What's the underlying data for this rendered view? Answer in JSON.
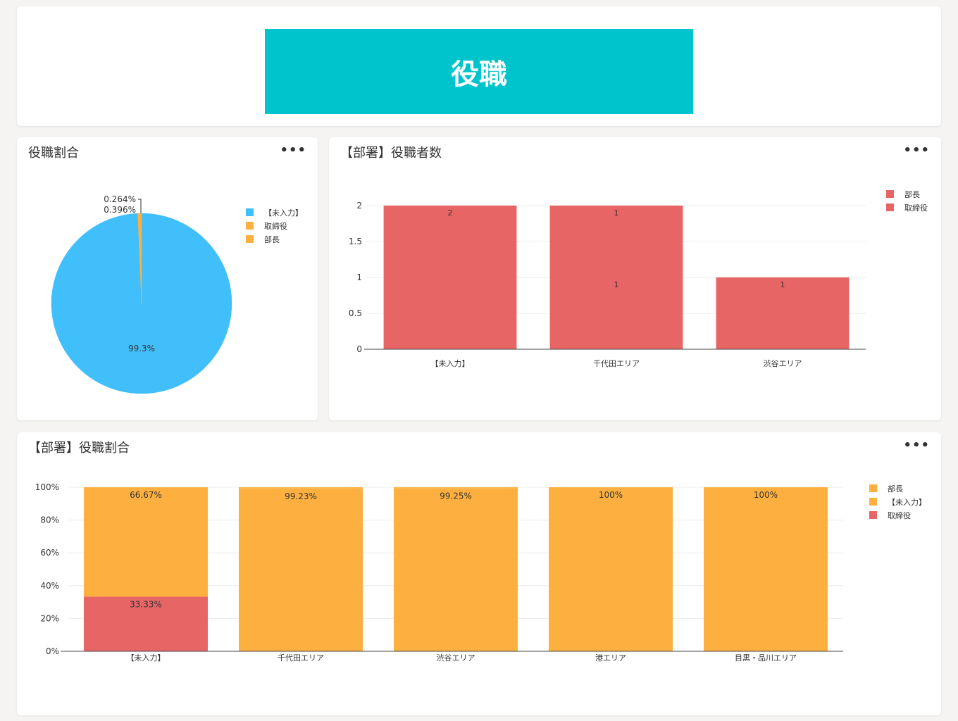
{
  "header": {
    "title": "役職",
    "banner_color": "#00c4cc"
  },
  "pie_card": {
    "title": "役職割合",
    "menu_label": "•••"
  },
  "bar_card": {
    "title": "【部署】役職者数",
    "menu_label": "•••"
  },
  "stack_card": {
    "title": "【部署】役職割合",
    "menu_label": "•••"
  },
  "chart_data": [
    {
      "type": "pie",
      "title": "役職割合",
      "slices": [
        {
          "label": "【未入力】",
          "value": 99.3,
          "display": "99.3%",
          "color": "#41bffb"
        },
        {
          "label": "取締役",
          "value": 0.396,
          "display": "0.396%",
          "color": "#fdb03f"
        },
        {
          "label": "部長",
          "value": 0.264,
          "display": "0.264%",
          "color": "#fdb03f"
        }
      ],
      "legend": [
        "【未入力】",
        "取締役",
        "部長"
      ],
      "legend_position": "right"
    },
    {
      "type": "bar",
      "stacked": true,
      "title": "【部署】役職者数",
      "categories": [
        "【未入力】",
        "千代田エリア",
        "渋谷エリア"
      ],
      "series": [
        {
          "name": "部長",
          "values": [
            0,
            1,
            0
          ],
          "color": "#e86566"
        },
        {
          "name": "取締役",
          "values": [
            2,
            1,
            1
          ],
          "color": "#e86566"
        }
      ],
      "labels": [
        [
          "",
          "1",
          ""
        ],
        [
          "2",
          "1",
          "1"
        ]
      ],
      "ylim": [
        0,
        2
      ],
      "yticks": [
        0,
        0.5,
        1,
        1.5,
        2
      ],
      "ytick_labels": [
        "0",
        "0.5",
        "1",
        "1.5",
        "2"
      ],
      "grid": true,
      "legend_position": "top-right"
    },
    {
      "type": "bar",
      "stacked": true,
      "percent": true,
      "title": "【部署】役職割合",
      "categories": [
        "【未入力】",
        "千代田エリア",
        "渋谷エリア",
        "港エリア",
        "目黒・品川エリア"
      ],
      "series": [
        {
          "name": "取締役",
          "values": [
            33.33,
            0,
            0,
            0,
            0
          ],
          "labels": [
            "33.33%",
            "",
            "",
            "",
            ""
          ],
          "color": "#e86566"
        },
        {
          "name": "【未入力】",
          "values": [
            66.67,
            99.23,
            99.25,
            100,
            100
          ],
          "labels": [
            "66.67%",
            "99.23%",
            "99.25%",
            "100%",
            "100%"
          ],
          "color": "#fdb03f"
        },
        {
          "name": "部長",
          "values": [
            0,
            0.77,
            0.75,
            0,
            0
          ],
          "labels": [
            "",
            "",
            "",
            "",
            ""
          ],
          "color": "#fdb03f"
        }
      ],
      "legend": [
        {
          "name": "部長",
          "color": "#fdb03f"
        },
        {
          "name": "【未入力】",
          "color": "#fdb03f"
        },
        {
          "name": "取締役",
          "color": "#e86566"
        }
      ],
      "ylim": [
        0,
        100
      ],
      "yticks": [
        0,
        20,
        40,
        60,
        80,
        100
      ],
      "ytick_labels": [
        "0%",
        "20%",
        "40%",
        "60%",
        "80%",
        "100%"
      ],
      "grid": true,
      "legend_position": "top-right"
    }
  ]
}
